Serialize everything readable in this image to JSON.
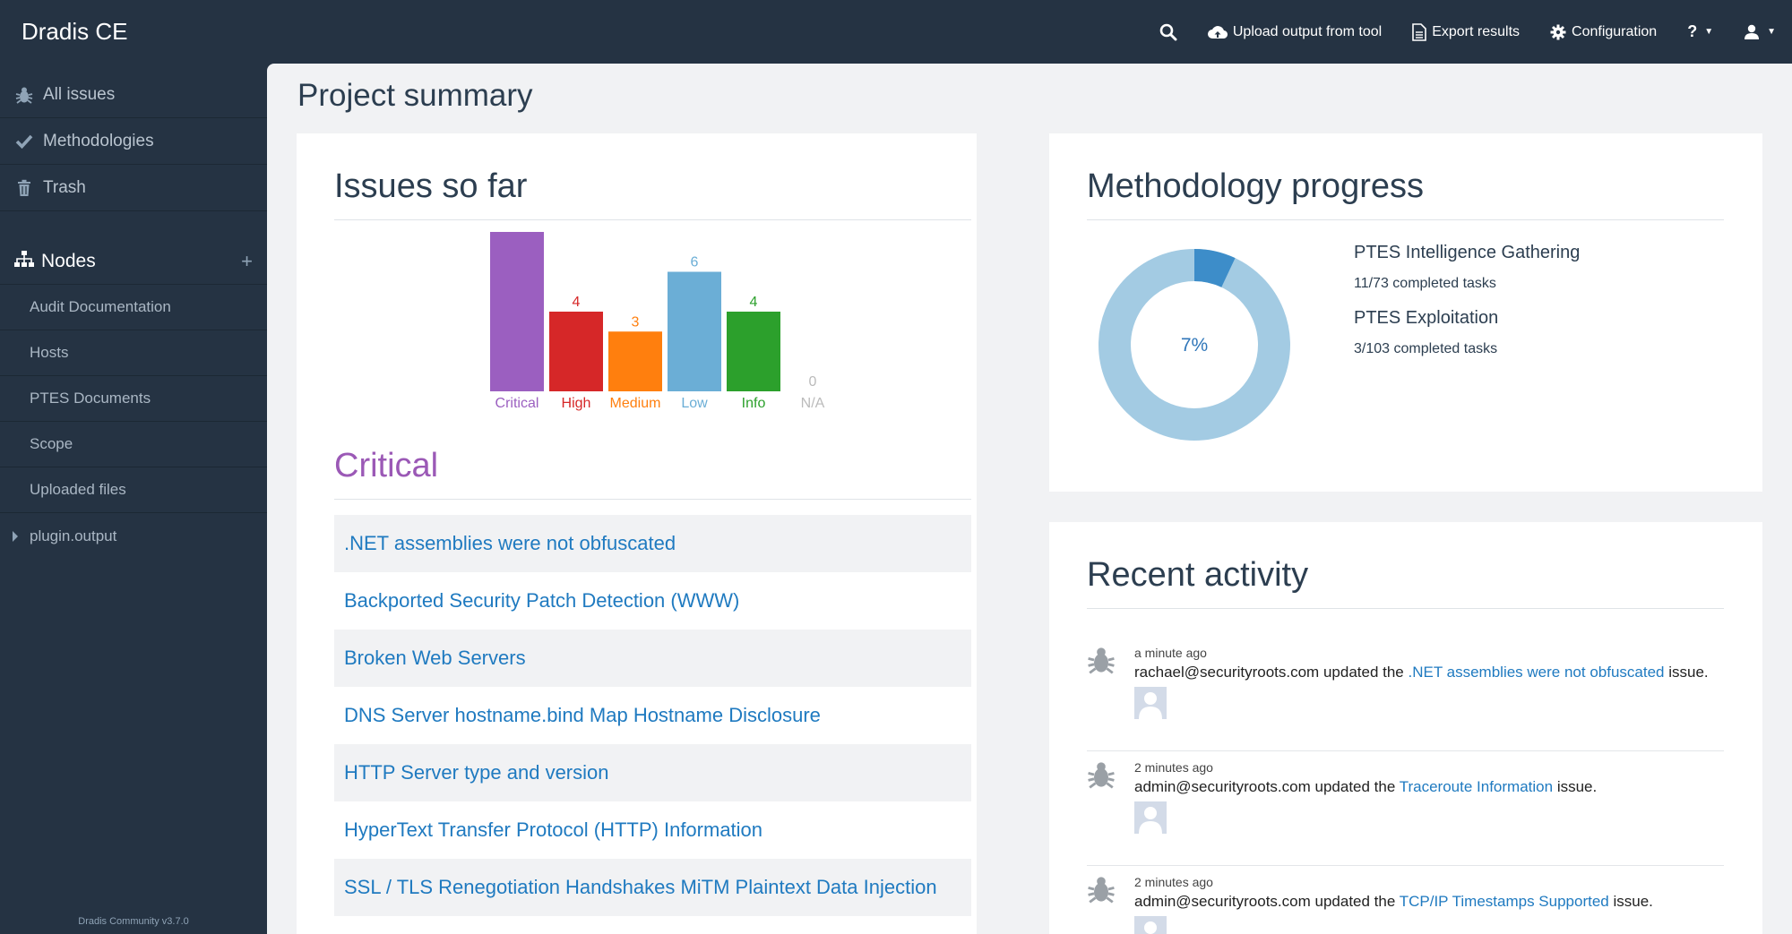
{
  "app": {
    "title": "Dradis CE",
    "version_footer": "Dradis Community v3.7.0"
  },
  "topnav": {
    "search_icon": "search-icon",
    "upload": "Upload output from tool",
    "export": "Export results",
    "configuration": "Configuration",
    "help": "?",
    "user_icon": "user-icon"
  },
  "sidebar": {
    "links": [
      {
        "label": "All issues",
        "icon": "bug-icon"
      },
      {
        "label": "Methodologies",
        "icon": "check-icon"
      },
      {
        "label": "Trash",
        "icon": "trash-icon"
      }
    ],
    "nodes_label": "Nodes",
    "nodes": [
      {
        "label": "Audit Documentation"
      },
      {
        "label": "Hosts"
      },
      {
        "label": "PTES Documents"
      },
      {
        "label": "Scope"
      },
      {
        "label": "Uploaded files"
      },
      {
        "label": "plugin.output"
      }
    ]
  },
  "main": {
    "page_title": "Project summary",
    "issues": {
      "title": "Issues so far",
      "critical_heading": "Critical",
      "list": [
        ".NET assemblies were not obfuscated",
        "Backported Security Patch Detection (WWW)",
        "Broken Web Servers",
        "DNS Server hostname.bind Map Hostname Disclosure",
        "HTTP Server type and version",
        "HyperText Transfer Protocol (HTTP) Information",
        "SSL / TLS Renegotiation Handshakes MiTM Plaintext Data Injection"
      ]
    },
    "methodology": {
      "title": "Methodology progress",
      "percent_label": "7%",
      "percent": 7,
      "items": [
        {
          "name": "PTES Intelligence Gathering",
          "count": "11/73 completed tasks"
        },
        {
          "name": "PTES Exploitation",
          "count": "3/103 completed tasks"
        }
      ]
    },
    "activity": {
      "title": "Recent activity",
      "items": [
        {
          "time": "a minute ago",
          "user": "rachael@securityroots.com",
          "verb": "updated the",
          "link": ".NET assemblies were not obfuscated",
          "suffix": "issue."
        },
        {
          "time": "2 minutes ago",
          "user": "admin@securityroots.com",
          "verb": "updated the",
          "link": "Traceroute Information",
          "suffix": "issue."
        },
        {
          "time": "2 minutes ago",
          "user": "admin@securityroots.com",
          "verb": "updated the",
          "link": "TCP/IP Timestamps Supported",
          "suffix": "issue."
        }
      ]
    }
  },
  "chart_data": {
    "type": "bar",
    "categories": [
      "Critical",
      "High",
      "Medium",
      "Low",
      "Info",
      "N/A"
    ],
    "values": [
      8,
      4,
      3,
      6,
      4,
      0
    ],
    "colors": [
      "#9b5fc0",
      "#d62728",
      "#ff7f0e",
      "#6baed6",
      "#2ca02c",
      "#bbbbbb"
    ],
    "title": "",
    "xlabel": "",
    "ylabel": "",
    "ylim": [
      0,
      8
    ]
  }
}
